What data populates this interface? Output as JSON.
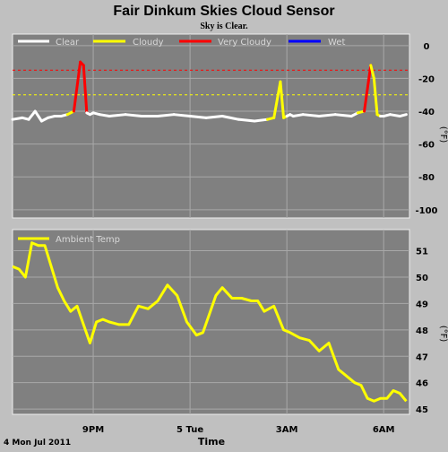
{
  "title": "Fair Dinkum Skies Cloud Sensor",
  "subtitle": "Sky is Clear.",
  "xlabel": "Time",
  "date_label": "4 Mon Jul 2011",
  "colors": {
    "background": "#c0c0c0",
    "plot_bg": "#808080",
    "grid": "#a8a8a8",
    "clear": "#ffffff",
    "cloudy": "#ffff00",
    "very_cloudy": "#ff0000",
    "wet": "#0000ff",
    "ambient": "#ffff00"
  },
  "chart_data": [
    {
      "type": "line",
      "name": "sky-temperature",
      "ylabel": "(°F)",
      "ylim": [
        -105,
        7
      ],
      "yticks": [
        0,
        -20,
        -40,
        -60,
        -80,
        -100
      ],
      "ytick_labels": [
        "0",
        "-20",
        "-40",
        "-60",
        "-80",
        "-100"
      ],
      "thresholds": [
        {
          "value": -15,
          "color": "#ff0000",
          "style": "dashed"
        },
        {
          "value": -30,
          "color": "#ffff00",
          "style": "dashed"
        }
      ],
      "legend": [
        {
          "label": "Clear",
          "color": "#ffffff"
        },
        {
          "label": "Cloudy",
          "color": "#ffff00"
        },
        {
          "label": "Very Cloudy",
          "color": "#ff0000"
        },
        {
          "label": "Wet",
          "color": "#0000ff"
        }
      ],
      "xlim": [
        18.5,
        30.8
      ],
      "x": [
        18.5,
        18.8,
        19.0,
        19.2,
        19.4,
        19.6,
        19.8,
        20.0,
        20.2,
        20.4,
        20.6,
        20.7,
        20.8,
        20.9,
        21.0,
        21.2,
        21.5,
        22.0,
        22.5,
        23.0,
        23.5,
        24.0,
        24.5,
        25.0,
        25.5,
        26.0,
        26.4,
        26.6,
        26.8,
        26.9,
        27.0,
        27.1,
        27.2,
        27.5,
        28.0,
        28.5,
        29.0,
        29.2,
        29.4,
        29.6,
        29.7,
        29.8,
        29.9,
        30.0,
        30.2,
        30.5,
        30.7
      ],
      "y": [
        -45,
        -44,
        -45,
        -40,
        -46,
        -44,
        -43,
        -43,
        -42,
        -40,
        -10,
        -12,
        -41,
        -42,
        -41,
        -42,
        -43,
        -42,
        -43,
        -43,
        -42,
        -43,
        -44,
        -43,
        -45,
        -46,
        -45,
        -44,
        -22,
        -44,
        -43,
        -42,
        -43,
        -42,
        -43,
        -42,
        -43,
        -41,
        -40,
        -12,
        -20,
        -42,
        -43,
        -43,
        -42,
        -43,
        -42
      ],
      "categories": [
        "clear",
        "clear",
        "clear",
        "clear",
        "clear",
        "clear",
        "clear",
        "clear",
        "clear",
        "cloudy",
        "very_cloudy",
        "very_cloudy",
        "clear",
        "clear",
        "clear",
        "clear",
        "clear",
        "clear",
        "clear",
        "clear",
        "clear",
        "clear",
        "clear",
        "clear",
        "clear",
        "clear",
        "clear",
        "cloudy",
        "cloudy",
        "cloudy",
        "clear",
        "clear",
        "clear",
        "clear",
        "clear",
        "clear",
        "clear",
        "clear",
        "cloudy",
        "very_cloudy",
        "cloudy",
        "cloudy",
        "clear",
        "clear",
        "clear",
        "clear",
        "clear"
      ]
    },
    {
      "type": "line",
      "name": "ambient-temperature",
      "ylabel": "(°F)",
      "ylim": [
        44.8,
        51.8
      ],
      "yticks": [
        51,
        50,
        49,
        48,
        47,
        46,
        45
      ],
      "ytick_labels": [
        "51",
        "50",
        "49",
        "48",
        "47",
        "46",
        "45"
      ],
      "legend": [
        {
          "label": "Ambient Temp",
          "color": "#ffff00"
        }
      ],
      "xlim": [
        18.5,
        30.8
      ],
      "x": [
        18.5,
        18.7,
        18.9,
        19.1,
        19.3,
        19.5,
        19.7,
        19.9,
        20.1,
        20.3,
        20.5,
        20.7,
        20.9,
        21.1,
        21.3,
        21.5,
        21.8,
        22.1,
        22.4,
        22.7,
        23.0,
        23.3,
        23.6,
        23.9,
        24.2,
        24.4,
        24.6,
        24.8,
        25.0,
        25.3,
        25.6,
        25.9,
        26.1,
        26.3,
        26.6,
        26.9,
        27.1,
        27.4,
        27.7,
        28.0,
        28.3,
        28.6,
        28.9,
        29.1,
        29.3,
        29.5,
        29.7,
        29.9,
        30.1,
        30.3,
        30.5,
        30.7
      ],
      "values": [
        50.4,
        50.3,
        50.0,
        51.3,
        51.2,
        51.2,
        50.4,
        49.6,
        49.1,
        48.7,
        48.9,
        48.2,
        47.5,
        48.3,
        48.4,
        48.3,
        48.2,
        48.2,
        48.9,
        48.8,
        49.1,
        49.7,
        49.3,
        48.3,
        47.8,
        47.9,
        48.6,
        49.3,
        49.6,
        49.2,
        49.2,
        49.1,
        49.1,
        48.7,
        48.9,
        48.0,
        47.9,
        47.7,
        47.6,
        47.2,
        47.5,
        46.5,
        46.2,
        46.0,
        45.9,
        45.4,
        45.3,
        45.4,
        45.4,
        45.7,
        45.6,
        45.3
      ],
      "xtick_values": [
        21.0,
        24.0,
        27.0,
        30.0
      ],
      "xtick_labels": [
        "9PM",
        "5 Tue",
        "3AM",
        "6AM"
      ]
    }
  ]
}
